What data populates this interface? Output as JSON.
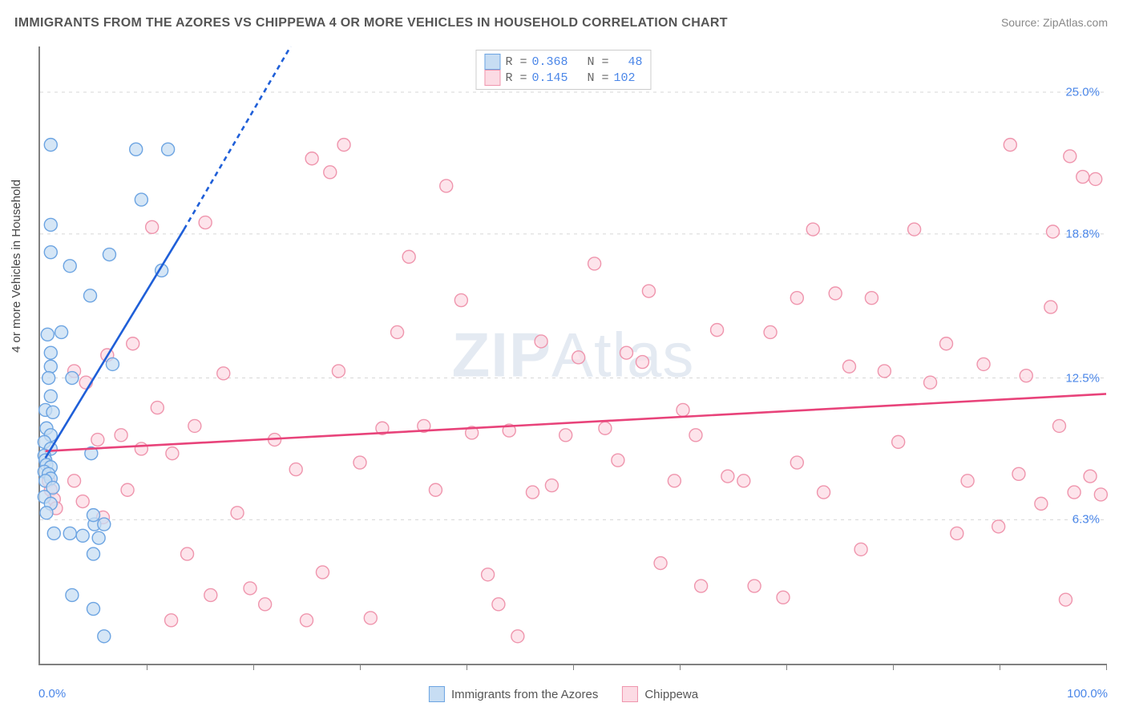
{
  "title": "IMMIGRANTS FROM THE AZORES VS CHIPPEWA 4 OR MORE VEHICLES IN HOUSEHOLD CORRELATION CHART",
  "source_label": "Source:",
  "source_value": "ZipAtlas.com",
  "y_axis_title": "4 or more Vehicles in Household",
  "watermark_a": "ZIP",
  "watermark_b": "Atlas",
  "chart": {
    "type": "scatter",
    "xlim": [
      0,
      100
    ],
    "ylim": [
      0,
      27
    ],
    "x_axis_labels": {
      "min": "0.0%",
      "max": "100.0%"
    },
    "y_ticks": [
      {
        "v": 6.3,
        "label": "6.3%"
      },
      {
        "v": 12.5,
        "label": "12.5%"
      },
      {
        "v": 18.8,
        "label": "18.8%"
      },
      {
        "v": 25.0,
        "label": "25.0%"
      }
    ],
    "x_tick_positions": [
      10,
      20,
      30,
      40,
      50,
      60,
      70,
      80,
      90,
      100
    ],
    "background_color": "#ffffff",
    "grid_color": "#d7d7d7",
    "axis_color": "#808080",
    "marker_radius": 8,
    "marker_stroke_width": 1.4,
    "trend_line_width": 2.6,
    "series": [
      {
        "name": "Immigrants from the Azores",
        "fill": "#c7ddf3",
        "stroke": "#6ca4e2",
        "trend_color": "#1f5fd8",
        "trend_dash_color": "#1f5fd8",
        "R": "0.368",
        "N": "48",
        "trend": {
          "x1": 0.5,
          "y1": 9.0,
          "x2": 13.5,
          "y2": 19.0,
          "dash_x2": 23.5,
          "dash_y2": 27.0
        },
        "points": [
          [
            1.0,
            22.7
          ],
          [
            1.0,
            19.2
          ],
          [
            1.0,
            18.0
          ],
          [
            0.7,
            14.4
          ],
          [
            1.0,
            13.6
          ],
          [
            1.0,
            13.0
          ],
          [
            0.8,
            12.5
          ],
          [
            1.0,
            11.7
          ],
          [
            0.5,
            11.1
          ],
          [
            1.2,
            11.0
          ],
          [
            0.6,
            10.3
          ],
          [
            1.0,
            10.0
          ],
          [
            0.4,
            9.7
          ],
          [
            1.0,
            9.4
          ],
          [
            0.4,
            9.1
          ],
          [
            0.5,
            8.9
          ],
          [
            0.6,
            8.7
          ],
          [
            1.0,
            8.6
          ],
          [
            0.4,
            8.4
          ],
          [
            0.8,
            8.3
          ],
          [
            1.0,
            8.1
          ],
          [
            0.5,
            8.0
          ],
          [
            1.2,
            7.7
          ],
          [
            0.4,
            7.3
          ],
          [
            1.0,
            7.0
          ],
          [
            0.6,
            6.6
          ],
          [
            1.3,
            5.7
          ],
          [
            2.8,
            5.7
          ],
          [
            4.0,
            5.6
          ],
          [
            5.1,
            6.1
          ],
          [
            5.0,
            6.5
          ],
          [
            5.5,
            5.5
          ],
          [
            6.0,
            6.1
          ],
          [
            5.0,
            4.8
          ],
          [
            5.0,
            2.4
          ],
          [
            6.0,
            1.2
          ],
          [
            2.8,
            17.4
          ],
          [
            4.7,
            16.1
          ],
          [
            6.5,
            17.9
          ],
          [
            6.8,
            13.1
          ],
          [
            9.0,
            22.5
          ],
          [
            9.5,
            20.3
          ],
          [
            11.4,
            17.2
          ],
          [
            12.0,
            22.5
          ],
          [
            4.8,
            9.2
          ],
          [
            3.0,
            12.5
          ],
          [
            2.0,
            14.5
          ],
          [
            3.0,
            3.0
          ]
        ]
      },
      {
        "name": "Chippewa",
        "fill": "#fcdbe4",
        "stroke": "#ef95ad",
        "trend_color": "#e8437a",
        "R": "0.145",
        "N": "102",
        "trend": {
          "x1": 0.5,
          "y1": 9.3,
          "x2": 100,
          "y2": 11.8
        },
        "points": [
          [
            0.8,
            8.0
          ],
          [
            1.0,
            7.6
          ],
          [
            1.3,
            7.2
          ],
          [
            1.5,
            6.8
          ],
          [
            3.2,
            8.0
          ],
          [
            4.0,
            7.1
          ],
          [
            3.2,
            12.8
          ],
          [
            4.3,
            12.3
          ],
          [
            5.4,
            9.8
          ],
          [
            5.9,
            6.4
          ],
          [
            6.3,
            13.5
          ],
          [
            7.6,
            10.0
          ],
          [
            8.2,
            7.6
          ],
          [
            8.7,
            14.0
          ],
          [
            9.5,
            9.4
          ],
          [
            10.5,
            19.1
          ],
          [
            11.0,
            11.2
          ],
          [
            12.4,
            9.2
          ],
          [
            12.3,
            1.9
          ],
          [
            13.8,
            4.8
          ],
          [
            14.5,
            10.4
          ],
          [
            15.5,
            19.3
          ],
          [
            16.0,
            3.0
          ],
          [
            17.2,
            12.7
          ],
          [
            18.5,
            6.6
          ],
          [
            19.7,
            3.3
          ],
          [
            21.1,
            2.6
          ],
          [
            22.0,
            9.8
          ],
          [
            24.0,
            8.5
          ],
          [
            25.0,
            1.9
          ],
          [
            25.5,
            22.1
          ],
          [
            26.5,
            4.0
          ],
          [
            27.2,
            21.5
          ],
          [
            28.0,
            12.8
          ],
          [
            28.5,
            22.7
          ],
          [
            30.0,
            8.8
          ],
          [
            31.0,
            2.0
          ],
          [
            32.1,
            10.3
          ],
          [
            33.5,
            14.5
          ],
          [
            34.6,
            17.8
          ],
          [
            36.0,
            10.4
          ],
          [
            37.1,
            7.6
          ],
          [
            38.1,
            20.9
          ],
          [
            39.5,
            15.9
          ],
          [
            40.5,
            10.1
          ],
          [
            42.0,
            3.9
          ],
          [
            43.0,
            2.6
          ],
          [
            44.0,
            10.2
          ],
          [
            44.8,
            1.2
          ],
          [
            46.2,
            7.5
          ],
          [
            47.0,
            14.1
          ],
          [
            48.0,
            7.8
          ],
          [
            49.3,
            10.0
          ],
          [
            50.5,
            13.4
          ],
          [
            52.0,
            17.5
          ],
          [
            53.0,
            10.3
          ],
          [
            54.2,
            8.9
          ],
          [
            55.0,
            13.6
          ],
          [
            56.5,
            13.2
          ],
          [
            57.1,
            16.3
          ],
          [
            58.2,
            4.4
          ],
          [
            59.5,
            8.0
          ],
          [
            60.3,
            11.1
          ],
          [
            61.5,
            10.0
          ],
          [
            62.0,
            3.4
          ],
          [
            63.5,
            14.6
          ],
          [
            64.5,
            8.2
          ],
          [
            66.0,
            8.0
          ],
          [
            67.0,
            3.4
          ],
          [
            68.5,
            14.5
          ],
          [
            69.7,
            2.9
          ],
          [
            71.0,
            8.8
          ],
          [
            72.5,
            19.0
          ],
          [
            73.5,
            7.5
          ],
          [
            74.6,
            16.2
          ],
          [
            75.9,
            13.0
          ],
          [
            77.0,
            5.0
          ],
          [
            78.0,
            16.0
          ],
          [
            79.2,
            12.8
          ],
          [
            80.5,
            9.7
          ],
          [
            82.0,
            19.0
          ],
          [
            83.5,
            12.3
          ],
          [
            71.0,
            16.0
          ],
          [
            86.0,
            5.7
          ],
          [
            87.0,
            8.0
          ],
          [
            88.5,
            13.1
          ],
          [
            89.9,
            6.0
          ],
          [
            91.0,
            22.7
          ],
          [
            91.8,
            8.3
          ],
          [
            92.5,
            12.6
          ],
          [
            93.9,
            7.0
          ],
          [
            94.8,
            15.6
          ],
          [
            95.6,
            10.4
          ],
          [
            96.2,
            2.8
          ],
          [
            96.6,
            22.2
          ],
          [
            97.0,
            7.5
          ],
          [
            97.8,
            21.3
          ],
          [
            98.5,
            8.2
          ],
          [
            99.0,
            21.2
          ],
          [
            99.5,
            7.4
          ],
          [
            95.0,
            18.9
          ],
          [
            85.0,
            14.0
          ]
        ]
      }
    ]
  }
}
